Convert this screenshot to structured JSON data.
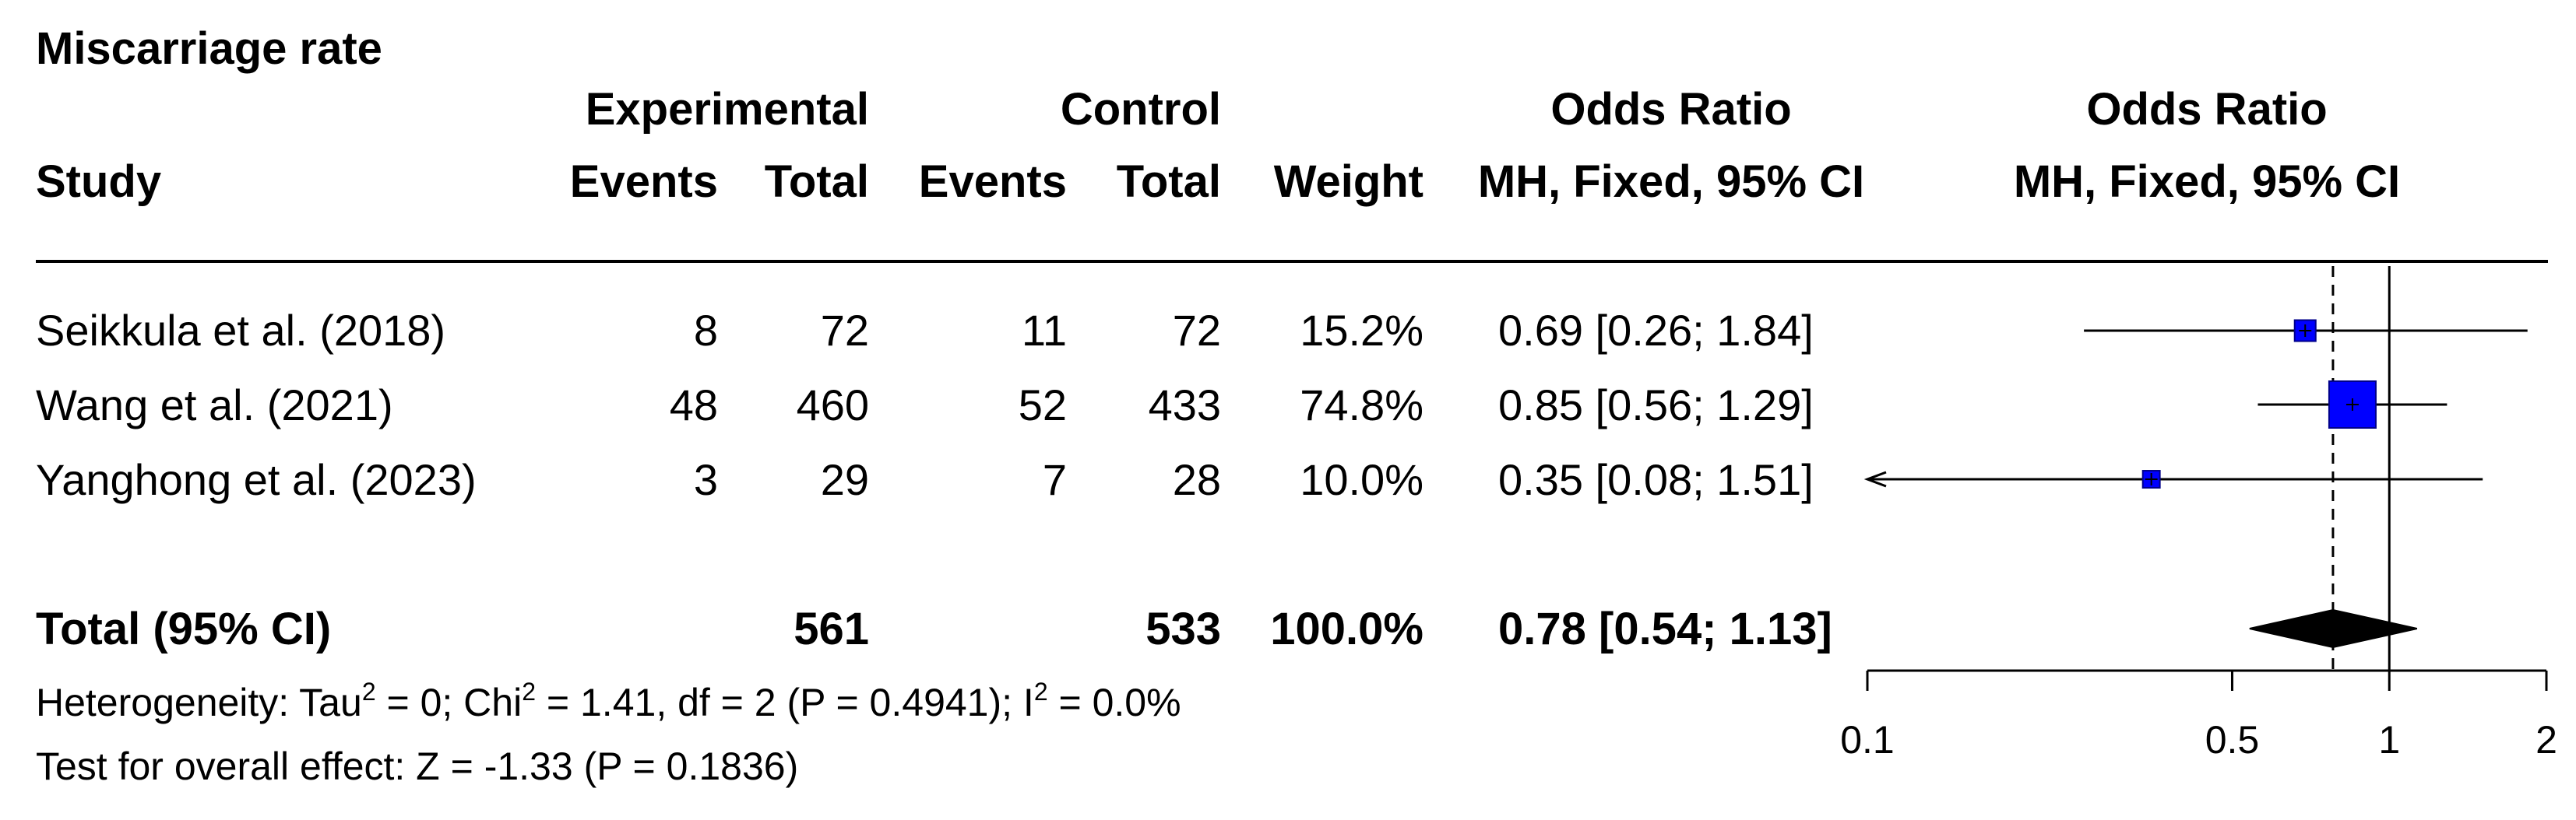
{
  "title": "Miscarriage rate",
  "headers": {
    "experimental": "Experimental",
    "control": "Control",
    "odds_ratio": "Odds Ratio",
    "study": "Study",
    "events": "Events",
    "total": "Total",
    "weight": "Weight",
    "method": "MH, Fixed, 95% CI"
  },
  "studies": [
    {
      "name": "Seikkula et al. (2018)",
      "exp_events": "8",
      "exp_total": "72",
      "ctrl_events": "11",
      "ctrl_total": "72",
      "weight": "15.2%",
      "ci_text": "0.69 [0.26; 1.84]"
    },
    {
      "name": "Wang et al. (2021)",
      "exp_events": "48",
      "exp_total": "460",
      "ctrl_events": "52",
      "ctrl_total": "433",
      "weight": "74.8%",
      "ci_text": "0.85 [0.56; 1.29]"
    },
    {
      "name": "Yanghong et al. (2023)",
      "exp_events": "3",
      "exp_total": "29",
      "ctrl_events": "7",
      "ctrl_total": "28",
      "weight": "10.0%",
      "ci_text": "0.35 [0.08; 1.51]"
    }
  ],
  "total_row": {
    "label": "Total (95% CI)",
    "exp_total": "561",
    "ctrl_total": "533",
    "weight": "100.0%",
    "ci_text": "0.78 [0.54; 1.13]"
  },
  "heterogeneity": {
    "prefix": "Heterogeneity: Tau",
    "sup1": "2",
    "mid1": " = 0; Chi",
    "sup2": "2",
    "mid2": " = 1.41, df = 2 (P = 0.4941); I",
    "sup3": "2",
    "end": " = 0.0%"
  },
  "overall_effect": "Test for overall effect: Z = -1.33 (P = 0.1836)",
  "colors": {
    "box": "#0000ff",
    "box_outline": "#00008b",
    "diamond": "#000000"
  },
  "chart_data": {
    "type": "forest",
    "scale": "log",
    "xlim": [
      0.1,
      2
    ],
    "xticks": [
      "0.1",
      "0.5",
      "1",
      "2"
    ],
    "tick_values": [
      0.1,
      0.5,
      1,
      2
    ],
    "reference_line": 1,
    "pooled_line": 0.78,
    "studies": [
      {
        "name": "Seikkula et al. (2018)",
        "or": 0.69,
        "lower": 0.26,
        "upper": 1.84,
        "weight": 15.2
      },
      {
        "name": "Wang et al. (2021)",
        "or": 0.85,
        "lower": 0.56,
        "upper": 1.29,
        "weight": 74.8
      },
      {
        "name": "Yanghong et al. (2023)",
        "or": 0.35,
        "lower": 0.08,
        "upper": 1.51,
        "weight": 10.0
      }
    ],
    "pooled": {
      "or": 0.78,
      "lower": 0.54,
      "upper": 1.13
    }
  }
}
